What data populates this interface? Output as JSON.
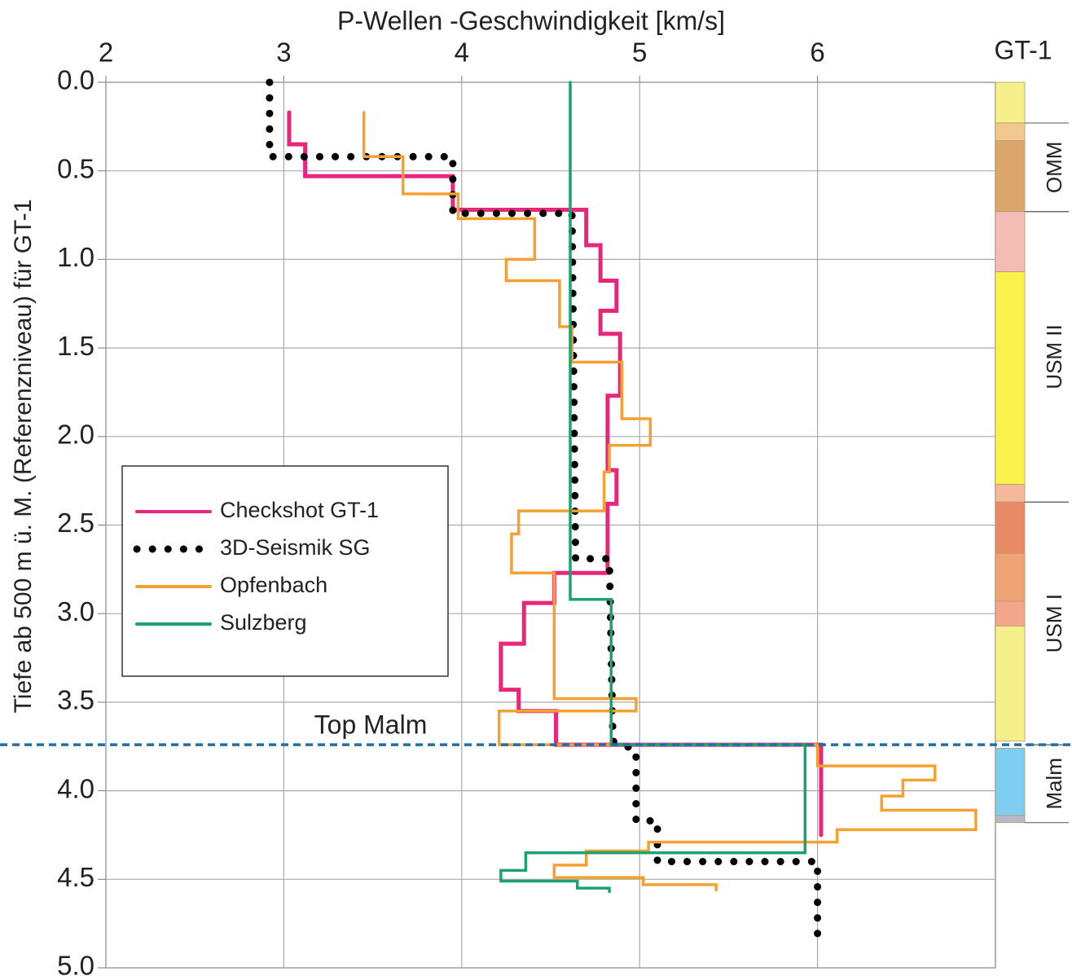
{
  "chart_data": {
    "type": "line",
    "title": "P-Wellen -Geschwindigkeit [km/s]",
    "y_label": "Tiefe ab 500 m ü. M. (Referenzniveau) für GT-1",
    "xlim": [
      2,
      7
    ],
    "xticks": [
      2,
      3,
      4,
      5,
      6
    ],
    "ylim": [
      0,
      5
    ],
    "y_inverted": true,
    "yticks": [
      {
        "value": 0,
        "label": "0.0"
      },
      0.5,
      {
        "value": 1,
        "label": "1.0"
      },
      1.5,
      {
        "value": 2,
        "label": "2.0"
      },
      2.5,
      {
        "value": 3,
        "label": "3.0"
      },
      3.5,
      {
        "value": 4,
        "label": "4.0"
      },
      4.5,
      {
        "value": 5,
        "label": "5.0"
      }
    ],
    "grid": true,
    "legend": "left",
    "series": [
      {
        "name": "Checkshot GT-1",
        "color": "#e8267a",
        "style": "solid",
        "x": [
          3.03,
          3.03,
          3.12,
          3.12,
          3.95,
          3.95,
          4.7,
          4.7,
          4.78,
          4.78,
          4.87,
          4.87,
          4.78,
          4.78,
          4.89,
          4.89,
          4.82,
          4.82,
          4.87,
          4.87,
          4.82,
          4.82,
          4.52,
          4.52,
          4.35,
          4.35,
          4.22,
          4.22,
          4.32,
          4.32,
          4.53,
          4.53,
          6.02,
          6.02
        ],
        "values": [
          0.17,
          0.35,
          0.35,
          0.53,
          0.53,
          0.72,
          0.72,
          0.92,
          0.92,
          1.12,
          1.12,
          1.29,
          1.29,
          1.42,
          1.42,
          1.77,
          1.77,
          2.19,
          2.19,
          2.38,
          2.38,
          2.77,
          2.77,
          2.94,
          2.94,
          3.17,
          3.17,
          3.43,
          3.43,
          3.55,
          3.55,
          3.74,
          3.74,
          4.25
        ]
      },
      {
        "name": "3D-Seismik SG",
        "color": "#000000",
        "style": "dotted",
        "x": [
          2.92,
          2.92,
          3.95,
          3.95,
          4.62,
          4.64,
          4.83,
          4.85,
          4.98,
          4.98,
          5.1,
          5.1,
          6.0,
          6.0
        ],
        "values": [
          0,
          0.42,
          0.42,
          0.74,
          0.74,
          2.69,
          2.69,
          3.72,
          3.77,
          4.17,
          4.17,
          4.4,
          4.4,
          4.85
        ]
      },
      {
        "name": "Opfenbach",
        "color": "#f5a030",
        "style": "solid",
        "x": [
          3.45,
          3.45,
          3.67,
          3.67,
          3.98,
          3.98,
          4.41,
          4.41,
          4.25,
          4.25,
          4.55,
          4.55,
          4.62,
          4.62,
          4.9,
          4.9,
          5.06,
          5.06,
          4.83,
          4.83,
          4.8,
          4.8,
          4.32,
          4.32,
          4.28,
          4.28,
          4.52,
          4.52,
          4.98,
          4.98,
          4.21,
          4.21,
          6.0,
          6.0,
          6.66,
          6.66,
          6.48,
          6.48,
          6.36,
          6.36,
          6.89,
          6.89,
          6.11,
          6.11,
          5.05,
          5.05,
          4.7,
          4.7,
          4.52,
          4.52,
          5.02,
          5.02,
          5.43,
          5.43
        ],
        "values": [
          0.17,
          0.42,
          0.42,
          0.63,
          0.63,
          0.77,
          0.77,
          1.0,
          1.0,
          1.12,
          1.12,
          1.38,
          1.38,
          1.58,
          1.58,
          1.9,
          1.9,
          2.05,
          2.05,
          2.2,
          2.2,
          2.42,
          2.42,
          2.55,
          2.55,
          2.77,
          2.77,
          3.48,
          3.48,
          3.55,
          3.55,
          3.74,
          3.74,
          3.86,
          3.86,
          3.94,
          3.94,
          4.03,
          4.03,
          4.11,
          4.11,
          4.22,
          4.22,
          4.29,
          4.29,
          4.34,
          4.34,
          4.42,
          4.42,
          4.49,
          4.49,
          4.53,
          4.53,
          4.56
        ]
      },
      {
        "name": "Sulzberg",
        "color": "#1aa370",
        "style": "solid",
        "x": [
          4.61,
          4.61,
          4.84,
          4.84,
          5.93,
          5.93,
          4.36,
          4.36,
          4.22,
          4.22,
          4.65,
          4.65,
          4.83,
          4.83
        ],
        "values": [
          0,
          2.92,
          2.92,
          3.74,
          3.74,
          4.35,
          4.35,
          4.45,
          4.45,
          4.51,
          4.51,
          4.55,
          4.55,
          4.57
        ]
      }
    ],
    "annotations": [
      {
        "text": "Top Malm",
        "depth": 3.74,
        "color": "#1f6fa8"
      }
    ],
    "column": {
      "title": "GT-1",
      "layers": [
        {
          "top": 0,
          "bottom": 0.23,
          "color": "#f7ef8a"
        },
        {
          "top": 0.23,
          "bottom": 0.33,
          "color": "#f0c890"
        },
        {
          "top": 0.33,
          "bottom": 0.73,
          "color": "#dca66a"
        },
        {
          "top": 0.73,
          "bottom": 1.07,
          "color": "#f4bcb4"
        },
        {
          "top": 1.07,
          "bottom": 2.27,
          "color": "#f9f24a"
        },
        {
          "top": 2.27,
          "bottom": 2.37,
          "color": "#f6b89a"
        },
        {
          "top": 2.37,
          "bottom": 2.66,
          "color": "#e98a66"
        },
        {
          "top": 2.66,
          "bottom": 2.93,
          "color": "#efa274"
        },
        {
          "top": 2.93,
          "bottom": 3.07,
          "color": "#f2a68c"
        },
        {
          "top": 3.07,
          "bottom": 3.72,
          "color": "#f6f08a"
        },
        {
          "top": 3.76,
          "bottom": 4.14,
          "color": "#7fcdf0"
        },
        {
          "top": 4.14,
          "bottom": 4.18,
          "color": "#b8b8c8"
        }
      ],
      "units": [
        {
          "label": "OMM",
          "top": 0.23,
          "bottom": 0.73
        },
        {
          "label": "USM II",
          "top": 0.73,
          "bottom": 2.37
        },
        {
          "label": "USM I",
          "top": 2.37,
          "bottom": 3.74
        },
        {
          "label": "Malm",
          "top": 3.74,
          "bottom": 4.18
        }
      ]
    }
  }
}
